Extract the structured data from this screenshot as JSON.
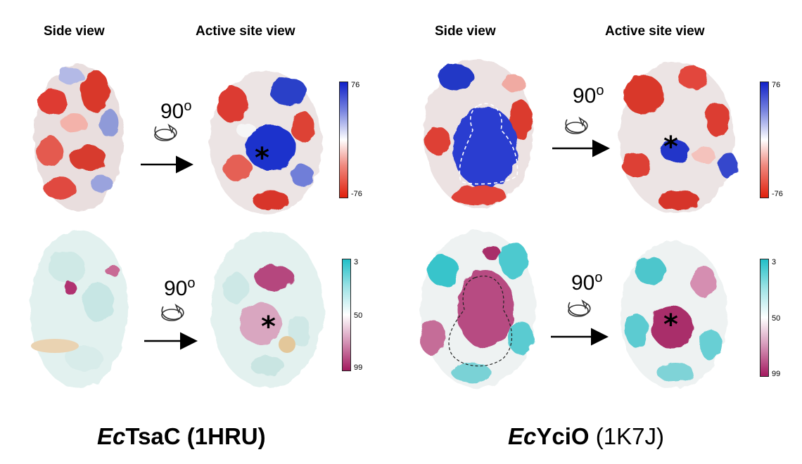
{
  "headers": {
    "left_side": "Side view",
    "left_active": "Active site  view",
    "right_side": "Side view",
    "right_active": "Active site  view"
  },
  "rotation_label": "90",
  "rotation_unit": "o",
  "active_site_marker": "*",
  "electrostatic_scale": {
    "max": "76",
    "min": "-76"
  },
  "conservation_scale": {
    "top": "3",
    "mid": "50",
    "bottom": "99"
  },
  "colors": {
    "positive": "#1021c8",
    "negative": "#e0200c",
    "cons_low": "#21c0c8",
    "cons_high": "#a3195f"
  },
  "captions": {
    "left_prefix": "Ec",
    "left_name": "TsaC",
    "left_pdb": "(1HRU)",
    "right_prefix": "Ec",
    "right_name": "YciO",
    "right_pdb": "(1K7J)"
  }
}
